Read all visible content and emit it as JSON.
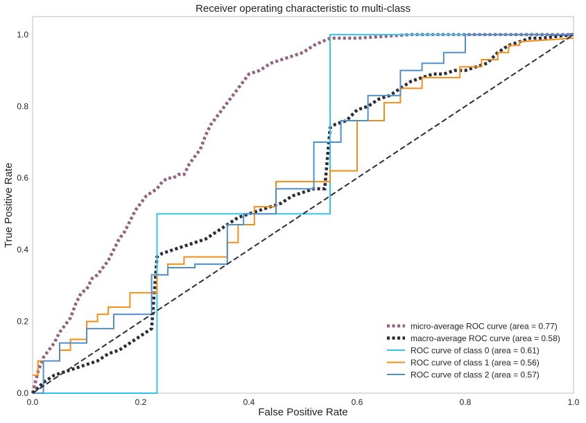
{
  "chart_data": {
    "type": "line",
    "title": "Receiver operating characteristic to multi-class",
    "xlabel": "False Positive Rate",
    "ylabel": "True Positive Rate",
    "xlim": [
      0.0,
      1.0
    ],
    "ylim": [
      0.0,
      1.05
    ],
    "xticks": [
      0.0,
      0.2,
      0.4,
      0.6,
      0.8,
      1.0
    ],
    "yticks": [
      0.0,
      0.2,
      0.4,
      0.6,
      0.8,
      1.0
    ],
    "xtick_labels": [
      "0.0",
      "0.2",
      "0.4",
      "0.6",
      "0.8",
      "1.0"
    ],
    "ytick_labels": [
      "0.0",
      "0.2",
      "0.4",
      "0.6",
      "0.8",
      "1.0"
    ],
    "grid": false,
    "legend_position": "lower-right",
    "series": [
      {
        "name": "micro-average ROC curve (area = 0.77)",
        "color": "#98607f",
        "style": "dotted-thick",
        "x": [
          0.0,
          0.01,
          0.02,
          0.03,
          0.04,
          0.05,
          0.06,
          0.07,
          0.08,
          0.09,
          0.1,
          0.11,
          0.12,
          0.13,
          0.14,
          0.15,
          0.16,
          0.17,
          0.18,
          0.19,
          0.2,
          0.21,
          0.22,
          0.23,
          0.24,
          0.25,
          0.26,
          0.27,
          0.28,
          0.29,
          0.3,
          0.31,
          0.32,
          0.33,
          0.34,
          0.35,
          0.36,
          0.37,
          0.38,
          0.39,
          0.4,
          0.42,
          0.44,
          0.46,
          0.48,
          0.5,
          0.52,
          0.55,
          0.6,
          0.7,
          0.8,
          0.9,
          1.0
        ],
        "y": [
          0.0,
          0.06,
          0.1,
          0.12,
          0.14,
          0.17,
          0.19,
          0.21,
          0.25,
          0.28,
          0.29,
          0.32,
          0.33,
          0.35,
          0.37,
          0.4,
          0.43,
          0.45,
          0.48,
          0.51,
          0.53,
          0.55,
          0.56,
          0.57,
          0.59,
          0.6,
          0.6,
          0.61,
          0.61,
          0.64,
          0.66,
          0.68,
          0.72,
          0.75,
          0.77,
          0.79,
          0.81,
          0.83,
          0.85,
          0.87,
          0.89,
          0.9,
          0.92,
          0.93,
          0.94,
          0.95,
          0.97,
          0.99,
          0.99,
          1.0,
          1.0,
          1.0,
          1.0
        ]
      },
      {
        "name": "macro-average ROC curve (area = 0.58)",
        "color": "#2b2b3b",
        "style": "dotted-thick",
        "x": [
          0.0,
          0.02,
          0.04,
          0.06,
          0.08,
          0.1,
          0.12,
          0.14,
          0.16,
          0.18,
          0.2,
          0.22,
          0.23,
          0.24,
          0.26,
          0.28,
          0.3,
          0.32,
          0.34,
          0.36,
          0.38,
          0.4,
          0.42,
          0.44,
          0.46,
          0.48,
          0.5,
          0.52,
          0.54,
          0.55,
          0.56,
          0.58,
          0.6,
          0.62,
          0.64,
          0.66,
          0.68,
          0.7,
          0.72,
          0.74,
          0.76,
          0.78,
          0.8,
          0.82,
          0.84,
          0.86,
          0.88,
          0.9,
          0.92,
          0.94,
          1.0
        ],
        "y": [
          0.0,
          0.03,
          0.05,
          0.06,
          0.07,
          0.08,
          0.09,
          0.11,
          0.12,
          0.14,
          0.16,
          0.18,
          0.38,
          0.39,
          0.4,
          0.41,
          0.42,
          0.43,
          0.45,
          0.47,
          0.49,
          0.5,
          0.51,
          0.52,
          0.53,
          0.55,
          0.56,
          0.57,
          0.57,
          0.74,
          0.75,
          0.76,
          0.79,
          0.8,
          0.82,
          0.83,
          0.85,
          0.87,
          0.88,
          0.89,
          0.89,
          0.9,
          0.9,
          0.91,
          0.92,
          0.95,
          0.97,
          0.98,
          0.99,
          0.99,
          1.0
        ]
      },
      {
        "name": "ROC curve of class 0 (area = 0.61)",
        "color": "#33c4ef",
        "style": "solid",
        "x": [
          0.0,
          0.23,
          0.23,
          0.55,
          0.55,
          1.0
        ],
        "y": [
          0.0,
          0.0,
          0.5,
          0.5,
          1.0,
          1.0
        ]
      },
      {
        "name": "ROC curve of class 1 (area = 0.56)",
        "color": "#f28e16",
        "style": "solid",
        "x": [
          0.0,
          0.01,
          0.01,
          0.05,
          0.05,
          0.07,
          0.07,
          0.1,
          0.1,
          0.12,
          0.12,
          0.14,
          0.14,
          0.18,
          0.18,
          0.23,
          0.23,
          0.25,
          0.25,
          0.28,
          0.28,
          0.36,
          0.36,
          0.38,
          0.38,
          0.41,
          0.41,
          0.45,
          0.45,
          0.55,
          0.55,
          0.6,
          0.6,
          0.65,
          0.65,
          0.68,
          0.68,
          0.72,
          0.72,
          0.79,
          0.79,
          0.83,
          0.83,
          0.86,
          0.86,
          0.88,
          0.88,
          0.9,
          0.9,
          1.0
        ],
        "y": [
          0.05,
          0.05,
          0.09,
          0.09,
          0.12,
          0.12,
          0.15,
          0.15,
          0.2,
          0.2,
          0.22,
          0.22,
          0.24,
          0.24,
          0.28,
          0.28,
          0.33,
          0.33,
          0.36,
          0.36,
          0.38,
          0.38,
          0.42,
          0.42,
          0.47,
          0.47,
          0.52,
          0.52,
          0.59,
          0.59,
          0.62,
          0.62,
          0.76,
          0.76,
          0.81,
          0.81,
          0.85,
          0.85,
          0.88,
          0.88,
          0.91,
          0.91,
          0.93,
          0.93,
          0.95,
          0.95,
          0.97,
          0.97,
          0.98,
          0.99
        ]
      },
      {
        "name": "ROC curve of class 2 (area = 0.57)",
        "color": "#4e8fcb",
        "style": "solid",
        "x": [
          0.0,
          0.02,
          0.02,
          0.05,
          0.05,
          0.1,
          0.1,
          0.15,
          0.15,
          0.22,
          0.22,
          0.25,
          0.25,
          0.3,
          0.3,
          0.36,
          0.36,
          0.39,
          0.39,
          0.45,
          0.45,
          0.52,
          0.52,
          0.57,
          0.57,
          0.62,
          0.62,
          0.68,
          0.68,
          0.72,
          0.72,
          0.76,
          0.76,
          0.8,
          0.8,
          1.0
        ],
        "y": [
          0.0,
          0.0,
          0.09,
          0.09,
          0.14,
          0.14,
          0.18,
          0.18,
          0.22,
          0.22,
          0.33,
          0.33,
          0.35,
          0.35,
          0.36,
          0.36,
          0.47,
          0.47,
          0.5,
          0.5,
          0.57,
          0.57,
          0.7,
          0.7,
          0.76,
          0.76,
          0.83,
          0.83,
          0.9,
          0.9,
          0.92,
          0.92,
          0.95,
          0.95,
          1.0,
          1.0
        ]
      },
      {
        "name": "",
        "color": "#2b2b3b",
        "style": "dashed",
        "x": [
          0.0,
          1.0
        ],
        "y": [
          0.0,
          1.0
        ]
      }
    ]
  }
}
